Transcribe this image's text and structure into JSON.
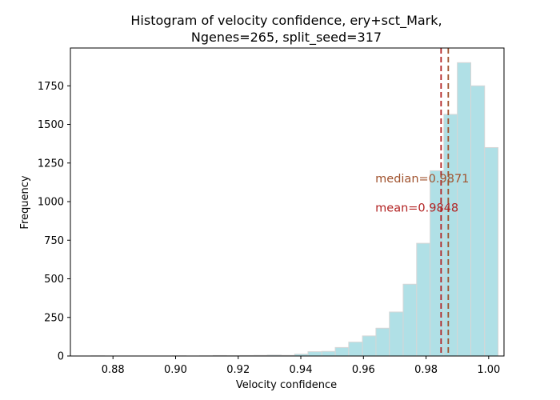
{
  "chart_data": {
    "type": "bar",
    "title": "Histogram of velocity confidence, ery+sct_Mark,",
    "subtitle": "Ngenes=265, split_seed=317",
    "xlabel": "Velocity confidence",
    "ylabel": "Frequency",
    "xlim": [
      0.8664,
      1.0049
    ],
    "ylim": [
      0,
      1995
    ],
    "xticks": [
      "0.88",
      "0.90",
      "0.92",
      "0.94",
      "0.96",
      "0.98",
      "1.00"
    ],
    "yticks": [
      "0",
      "250",
      "500",
      "750",
      "1000",
      "1250",
      "1500",
      "1750"
    ],
    "grid": false,
    "bins": [
      {
        "x0": 0.873,
        "x1": 0.8773,
        "count": 1
      },
      {
        "x0": 0.8773,
        "x1": 0.8817,
        "count": 0
      },
      {
        "x0": 0.8817,
        "x1": 0.886,
        "count": 0
      },
      {
        "x0": 0.886,
        "x1": 0.8903,
        "count": 0
      },
      {
        "x0": 0.8903,
        "x1": 0.8947,
        "count": 0
      },
      {
        "x0": 0.8947,
        "x1": 0.899,
        "count": 0
      },
      {
        "x0": 0.899,
        "x1": 0.9033,
        "count": 1
      },
      {
        "x0": 0.9033,
        "x1": 0.9077,
        "count": 0
      },
      {
        "x0": 0.9077,
        "x1": 0.912,
        "count": 1
      },
      {
        "x0": 0.912,
        "x1": 0.9163,
        "count": 3
      },
      {
        "x0": 0.9163,
        "x1": 0.9207,
        "count": 2
      },
      {
        "x0": 0.9207,
        "x1": 0.925,
        "count": 3
      },
      {
        "x0": 0.925,
        "x1": 0.9293,
        "count": 4
      },
      {
        "x0": 0.9293,
        "x1": 0.9337,
        "count": 6
      },
      {
        "x0": 0.9337,
        "x1": 0.938,
        "count": 4
      },
      {
        "x0": 0.938,
        "x1": 0.9423,
        "count": 12
      },
      {
        "x0": 0.9423,
        "x1": 0.9467,
        "count": 28
      },
      {
        "x0": 0.9467,
        "x1": 0.951,
        "count": 30
      },
      {
        "x0": 0.951,
        "x1": 0.9553,
        "count": 55
      },
      {
        "x0": 0.9553,
        "x1": 0.9597,
        "count": 90
      },
      {
        "x0": 0.9597,
        "x1": 0.964,
        "count": 130
      },
      {
        "x0": 0.964,
        "x1": 0.9683,
        "count": 180
      },
      {
        "x0": 0.9683,
        "x1": 0.9727,
        "count": 285
      },
      {
        "x0": 0.9727,
        "x1": 0.977,
        "count": 465
      },
      {
        "x0": 0.977,
        "x1": 0.9813,
        "count": 730
      },
      {
        "x0": 0.9813,
        "x1": 0.9857,
        "count": 1200
      },
      {
        "x0": 0.9857,
        "x1": 0.99,
        "count": 1565
      },
      {
        "x0": 0.99,
        "x1": 0.9943,
        "count": 1900
      },
      {
        "x0": 0.9943,
        "x1": 0.9987,
        "count": 1750
      },
      {
        "x0": 0.9987,
        "x1": 1.003,
        "count": 1350
      }
    ],
    "reference_lines": [
      {
        "label": "median=0.9871",
        "value": 0.9871,
        "color": "#a0522d",
        "label_value_y": 1150
      },
      {
        "label": "mean=0.9848",
        "value": 0.9848,
        "color": "#b22222",
        "label_value_y": 960
      }
    ],
    "annotation_x": 0.9638,
    "colors": {
      "bar_fill": "#b0e0e6",
      "bar_edge": "#d6d6d6",
      "axis": "#000000"
    }
  }
}
